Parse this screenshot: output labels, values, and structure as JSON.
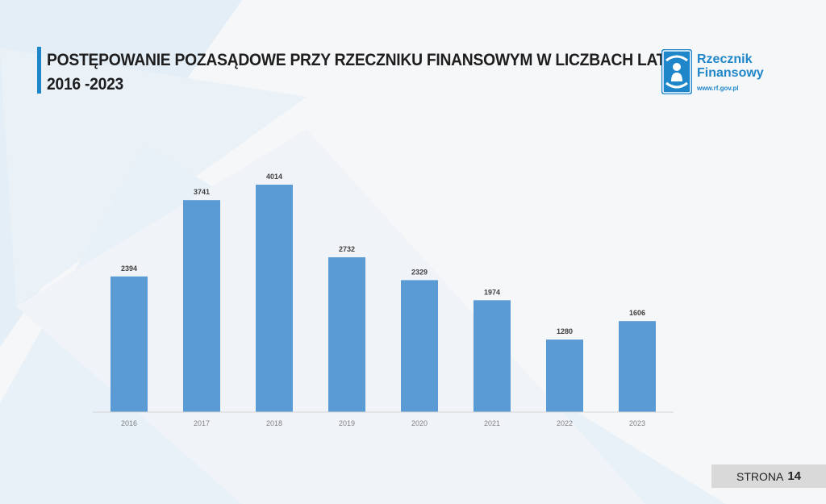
{
  "title": {
    "line1": "POSTĘPOWANIE POZASĄDOWE PRZY RZECZNIKU FINANSOWYM W LICZBACH  LAT",
    "line2": "2016 -2023"
  },
  "logo": {
    "name_line1": "Rzecznik",
    "name_line2": "Finansowy",
    "url": "www.rf.gov.pl",
    "icon": "hands-person-icon"
  },
  "page": {
    "label": "STRONA",
    "number": "14"
  },
  "colors": {
    "bar": "#5b9bd5",
    "accent": "#1f86c9",
    "background": "#f6f7f9"
  },
  "chart_data": {
    "type": "bar",
    "categories": [
      "2016",
      "2017",
      "2018",
      "2019",
      "2020",
      "2021",
      "2022",
      "2023"
    ],
    "values": [
      2394,
      3741,
      4014,
      2732,
      2329,
      1974,
      1280,
      1606
    ],
    "title": "",
    "xlabel": "",
    "ylabel": "",
    "ylim": [
      0,
      4014
    ],
    "grid": false,
    "legend": "none",
    "data_labels": true
  }
}
